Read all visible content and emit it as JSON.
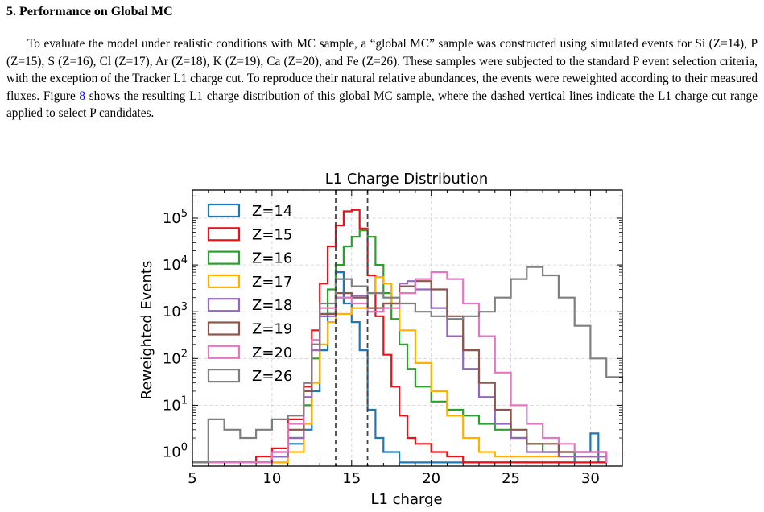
{
  "section": {
    "number": "5.",
    "title": "Performance on Global MC"
  },
  "paragraph": {
    "text_before_ref": "To evaluate the model under realistic conditions with MC sample, a “global MC” sample was constructed using simulated events for Si (Z=14), P (Z=15), S (Z=16), Cl (Z=17), Ar (Z=18), K (Z=19), Ca (Z=20), and Fe (Z=26). These samples were subjected to the standard P event selection criteria, with the exception of the Tracker L1 charge cut. To reproduce their natural relative abundances, the events were reweighted according to their measured fluxes. Figure ",
    "figure_ref": "8",
    "text_after_ref": " shows the resulting L1 charge distribution of this global MC sample, where the dashed vertical lines indicate the L1 charge cut range applied to select P candidates."
  },
  "chart_data": {
    "type": "line",
    "title": "L1 Charge Distribution",
    "xlabel": "L1 charge",
    "ylabel": "Reweighted Events",
    "xlim": [
      5,
      32
    ],
    "ylim": [
      0.5,
      400000
    ],
    "yscale": "log",
    "xticks": [
      5,
      10,
      15,
      20,
      25,
      30
    ],
    "yticks": [
      {
        "value": 1,
        "base": "10",
        "exp": "0"
      },
      {
        "value": 10,
        "base": "10",
        "exp": "1"
      },
      {
        "value": 100,
        "base": "10",
        "exp": "2"
      },
      {
        "value": 1000,
        "base": "10",
        "exp": "3"
      },
      {
        "value": 10000,
        "base": "10",
        "exp": "4"
      },
      {
        "value": 100000,
        "base": "10",
        "exp": "5"
      }
    ],
    "grid": true,
    "legend_position": "top-left",
    "cut_lines": [
      14,
      16
    ],
    "series": [
      {
        "name": "Z=14",
        "color": "#1f77b4",
        "points": [
          [
            5,
            0.6
          ],
          [
            8,
            0.6
          ],
          [
            10,
            0.8
          ],
          [
            11,
            1.5
          ],
          [
            12,
            3
          ],
          [
            12.5,
            20
          ],
          [
            13,
            150
          ],
          [
            13.5,
            900
          ],
          [
            14,
            7000
          ],
          [
            14.5,
            1500
          ],
          [
            15,
            600
          ],
          [
            15.5,
            150
          ],
          [
            16,
            8
          ],
          [
            16.5,
            2
          ],
          [
            17,
            1
          ],
          [
            18,
            0.6
          ],
          [
            19,
            0.6
          ],
          [
            28,
            0.6
          ],
          [
            29,
            1
          ],
          [
            30,
            2.5
          ],
          [
            30.5,
            0.6
          ],
          [
            31,
            0.6
          ]
        ]
      },
      {
        "name": "Z=15",
        "color": "#e8131a",
        "points": [
          [
            5,
            0.6
          ],
          [
            8,
            0.6
          ],
          [
            9,
            0.8
          ],
          [
            10,
            1.2
          ],
          [
            11,
            5
          ],
          [
            12,
            25
          ],
          [
            12.5,
            400
          ],
          [
            13,
            4000
          ],
          [
            13.5,
            25000
          ],
          [
            14,
            70000
          ],
          [
            14.5,
            140000
          ],
          [
            15,
            150000
          ],
          [
            15.5,
            60000
          ],
          [
            16,
            6000
          ],
          [
            16.5,
            800
          ],
          [
            17,
            120
          ],
          [
            17.5,
            25
          ],
          [
            18,
            6
          ],
          [
            18.5,
            2
          ],
          [
            19,
            1.5
          ],
          [
            20,
            1
          ],
          [
            21,
            0.8
          ],
          [
            22,
            0.6
          ],
          [
            31,
            0.6
          ]
        ]
      },
      {
        "name": "Z=16",
        "color": "#2ca02c",
        "points": [
          [
            5,
            0.6
          ],
          [
            9,
            0.6
          ],
          [
            10,
            0.8
          ],
          [
            11,
            2
          ],
          [
            12,
            10
          ],
          [
            12.5,
            100
          ],
          [
            13,
            800
          ],
          [
            13.5,
            3000
          ],
          [
            14,
            10000
          ],
          [
            14.5,
            25000
          ],
          [
            15,
            40000
          ],
          [
            15.5,
            55000
          ],
          [
            16,
            40000
          ],
          [
            16.5,
            10000
          ],
          [
            17,
            2500
          ],
          [
            17.5,
            700
          ],
          [
            18,
            200
          ],
          [
            18.5,
            60
          ],
          [
            19,
            25
          ],
          [
            20,
            12
          ],
          [
            21,
            8
          ],
          [
            22,
            6
          ],
          [
            23,
            4
          ],
          [
            24,
            3
          ],
          [
            25,
            2
          ],
          [
            26,
            1.5
          ],
          [
            27,
            1
          ],
          [
            29,
            0.8
          ],
          [
            31,
            0.6
          ]
        ]
      },
      {
        "name": "Z=17",
        "color": "#ffb000",
        "points": [
          [
            5,
            0.6
          ],
          [
            10,
            0.6
          ],
          [
            11,
            1
          ],
          [
            12,
            4
          ],
          [
            12.5,
            30
          ],
          [
            13,
            200
          ],
          [
            13.5,
            600
          ],
          [
            14,
            900
          ],
          [
            15,
            1200
          ],
          [
            16,
            2500
          ],
          [
            16.5,
            5500
          ],
          [
            17,
            4000
          ],
          [
            17.5,
            1500
          ],
          [
            18,
            400
          ],
          [
            19,
            80
          ],
          [
            20,
            20
          ],
          [
            21,
            6
          ],
          [
            22,
            2
          ],
          [
            23,
            1
          ],
          [
            24,
            0.8
          ],
          [
            31,
            0.6
          ]
        ]
      },
      {
        "name": "Z=18",
        "color": "#9467bd",
        "points": [
          [
            5,
            0.6
          ],
          [
            9,
            0.6
          ],
          [
            10,
            0.8
          ],
          [
            11,
            2
          ],
          [
            12,
            15
          ],
          [
            12.5,
            150
          ],
          [
            13,
            800
          ],
          [
            14,
            2000
          ],
          [
            15,
            2200
          ],
          [
            16,
            1000
          ],
          [
            17,
            1500
          ],
          [
            18,
            4000
          ],
          [
            18.5,
            4500
          ],
          [
            19,
            3000
          ],
          [
            20,
            1200
          ],
          [
            21,
            300
          ],
          [
            22,
            60
          ],
          [
            23,
            15
          ],
          [
            24,
            4
          ],
          [
            25,
            2
          ],
          [
            26,
            1
          ],
          [
            28,
            0.8
          ],
          [
            31,
            0.6
          ]
        ]
      },
      {
        "name": "Z=19",
        "color": "#8c564b",
        "points": [
          [
            5,
            0.6
          ],
          [
            9,
            0.6
          ],
          [
            10,
            1
          ],
          [
            11,
            3
          ],
          [
            12,
            20
          ],
          [
            12.5,
            200
          ],
          [
            13,
            900
          ],
          [
            14,
            2500
          ],
          [
            15,
            2000
          ],
          [
            16,
            1200
          ],
          [
            17,
            1500
          ],
          [
            18,
            3500
          ],
          [
            19,
            4500
          ],
          [
            20,
            3000
          ],
          [
            21,
            800
          ],
          [
            22,
            150
          ],
          [
            23,
            30
          ],
          [
            24,
            8
          ],
          [
            25,
            3
          ],
          [
            26,
            1.5
          ],
          [
            28,
            1
          ],
          [
            31,
            0.6
          ]
        ]
      },
      {
        "name": "Z=20",
        "color": "#e377c2",
        "points": [
          [
            5,
            0.6
          ],
          [
            9,
            0.6
          ],
          [
            10,
            1
          ],
          [
            11,
            4
          ],
          [
            12,
            30
          ],
          [
            12.5,
            250
          ],
          [
            13,
            1200
          ],
          [
            14,
            2000
          ],
          [
            15,
            1500
          ],
          [
            16,
            1000
          ],
          [
            17,
            1200
          ],
          [
            18,
            2500
          ],
          [
            19,
            5000
          ],
          [
            20,
            7000
          ],
          [
            21,
            5000
          ],
          [
            22,
            1500
          ],
          [
            23,
            300
          ],
          [
            24,
            50
          ],
          [
            25,
            10
          ],
          [
            26,
            4
          ],
          [
            27,
            2
          ],
          [
            28,
            1.5
          ],
          [
            29,
            1
          ],
          [
            31,
            0.6
          ]
        ]
      },
      {
        "name": "Z=26",
        "color": "#7f7f7f",
        "points": [
          [
            5,
            0.6
          ],
          [
            6,
            5
          ],
          [
            7,
            3
          ],
          [
            8,
            2
          ],
          [
            9,
            3
          ],
          [
            10,
            5
          ],
          [
            11,
            6
          ],
          [
            12,
            30
          ],
          [
            12.5,
            200
          ],
          [
            13,
            1500
          ],
          [
            14,
            5000
          ],
          [
            15,
            3500
          ],
          [
            16,
            2500
          ],
          [
            17,
            2000
          ],
          [
            18,
            1500
          ],
          [
            19,
            1000
          ],
          [
            20,
            800
          ],
          [
            21,
            700
          ],
          [
            22,
            800
          ],
          [
            23,
            1000
          ],
          [
            24,
            2000
          ],
          [
            25,
            5000
          ],
          [
            26,
            9000
          ],
          [
            27,
            6000
          ],
          [
            28,
            2000
          ],
          [
            29,
            500
          ],
          [
            30,
            100
          ],
          [
            31,
            40
          ],
          [
            32,
            30
          ]
        ]
      }
    ]
  }
}
